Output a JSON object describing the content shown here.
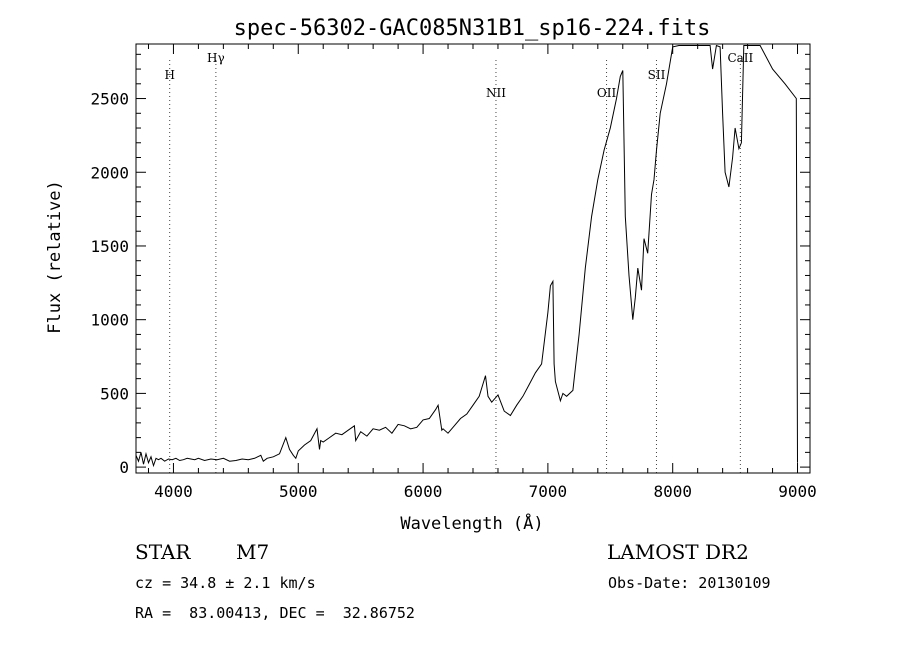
{
  "chart_data": {
    "type": "line",
    "title": "spec-56302-GAC085N31B1_sp16-224.fits",
    "xlabel": "Wavelength (Å)",
    "ylabel": "Flux (relative)",
    "xlim": [
      3700,
      9100
    ],
    "ylim": [
      -40,
      2870
    ],
    "xticks": [
      4000,
      5000,
      6000,
      7000,
      8000,
      9000
    ],
    "yticks": [
      0,
      500,
      1000,
      1500,
      2000,
      2500
    ],
    "grid": false,
    "lines": [
      {
        "label": "H",
        "x": 3970
      },
      {
        "label": "Hγ",
        "x": 4340
      },
      {
        "label": "NII",
        "x": 6584
      },
      {
        "label": "OII",
        "x": 7470
      },
      {
        "label": "SII",
        "x": 7870
      },
      {
        "label": "CaII",
        "x": 8542
      }
    ],
    "series": [
      {
        "x": [
          3700,
          3720,
          3740,
          3760,
          3780,
          3800,
          3820,
          3840,
          3860,
          3880,
          3900,
          3930,
          3960,
          3990,
          4020,
          4050,
          4080,
          4110,
          4140,
          4170,
          4200,
          4250,
          4300,
          4350,
          4400,
          4450,
          4500,
          4550,
          4600,
          4650,
          4700,
          4720,
          4750,
          4800,
          4850,
          4900,
          4930,
          4960,
          4980,
          5000,
          5050,
          5100,
          5150,
          5170,
          5180,
          5200,
          5250,
          5300,
          5350,
          5400,
          5450,
          5460,
          5500,
          5550,
          5600,
          5650,
          5700,
          5750,
          5800,
          5850,
          5900,
          5950,
          6000,
          6050,
          6100,
          6120,
          6150,
          6160,
          6200,
          6250,
          6300,
          6350,
          6400,
          6450,
          6500,
          6520,
          6550,
          6600,
          6650,
          6700,
          6750,
          6800,
          6850,
          6900,
          6950,
          7000,
          7020,
          7040,
          7050,
          7060,
          7100,
          7120,
          7150,
          7200,
          7250,
          7300,
          7350,
          7400,
          7450,
          7500,
          7550,
          7580,
          7600,
          7620,
          7650,
          7680,
          7700,
          7720,
          7750,
          7770,
          7800,
          7830,
          7850,
          7870,
          7900,
          7950,
          8000,
          8050,
          8070,
          8100,
          8150,
          8200,
          8250,
          8300,
          8320,
          8350,
          8380,
          8400,
          8420,
          8450,
          8480,
          8500,
          8530,
          8550,
          8570,
          8600,
          8630,
          8650,
          8700,
          8800,
          8900,
          8990,
          9000
        ],
        "y": [
          80,
          40,
          100,
          20,
          90,
          30,
          70,
          10,
          60,
          50,
          60,
          40,
          55,
          50,
          60,
          45,
          50,
          60,
          55,
          50,
          60,
          45,
          55,
          50,
          60,
          40,
          45,
          55,
          50,
          60,
          80,
          40,
          60,
          70,
          90,
          200,
          120,
          80,
          60,
          110,
          150,
          180,
          260,
          120,
          180,
          170,
          200,
          230,
          220,
          250,
          280,
          180,
          240,
          210,
          260,
          250,
          270,
          230,
          290,
          280,
          260,
          270,
          320,
          330,
          390,
          420,
          250,
          260,
          230,
          280,
          330,
          360,
          420,
          480,
          620,
          480,
          440,
          490,
          380,
          350,
          420,
          480,
          560,
          640,
          700,
          1050,
          1230,
          1260,
          700,
          580,
          450,
          500,
          480,
          520,
          900,
          1350,
          1700,
          1950,
          2150,
          2300,
          2500,
          2650,
          2690,
          1700,
          1300,
          1000,
          1150,
          1350,
          1200,
          1550,
          1450,
          1850,
          1950,
          2150,
          2400,
          2600,
          2850,
          2860,
          2860,
          2860,
          2860,
          2860,
          2860,
          2860,
          2700,
          2860,
          2850,
          2400,
          2000,
          1900,
          2100,
          2300,
          2160,
          2200,
          2860,
          2860,
          2860,
          2860,
          2860,
          2700,
          2600,
          2500,
          30
        ]
      }
    ]
  },
  "meta": {
    "object_class": "STAR",
    "subclass": "M7",
    "survey": "LAMOST DR2",
    "redshift": "cz = 34.8 ± 2.1 km/s",
    "obs_date": "Obs-Date: 20130109",
    "coords": "RA =  83.00413, DEC =  32.86752"
  }
}
